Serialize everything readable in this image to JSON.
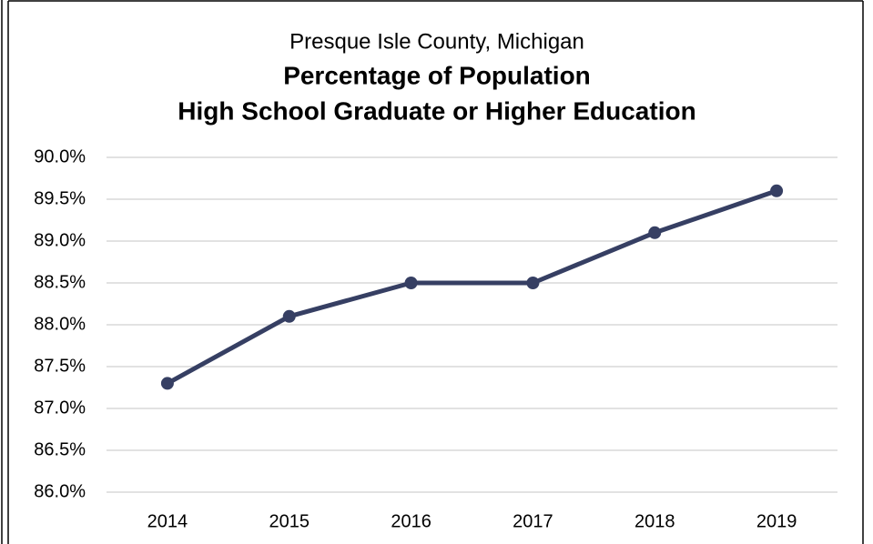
{
  "chart_data": {
    "type": "line",
    "title": [
      "Presque Isle County, Michigan",
      "Percentage of Population",
      "High School Graduate or Higher Education"
    ],
    "categories": [
      "2014",
      "2015",
      "2016",
      "2017",
      "2018",
      "2019"
    ],
    "series": [
      {
        "name": "Percentage of Population",
        "color": "#363f63",
        "values": [
          87.3,
          88.1,
          88.5,
          88.5,
          89.1,
          89.6
        ]
      }
    ],
    "ylim": [
      86,
      90
    ],
    "yticks": [
      {
        "value": 86,
        "label": "86.0%"
      },
      {
        "value": 86.5,
        "label": "86.5%"
      },
      {
        "value": 87,
        "label": "87.0%"
      },
      {
        "value": 87.5,
        "label": "87.5%"
      },
      {
        "value": 88,
        "label": "88.0%"
      },
      {
        "value": 88.5,
        "label": "88.5%"
      },
      {
        "value": 89,
        "label": "89.0%"
      },
      {
        "value": 89.5,
        "label": "89.5%"
      },
      {
        "value": 90,
        "label": "90.0%"
      }
    ],
    "grid": true
  }
}
